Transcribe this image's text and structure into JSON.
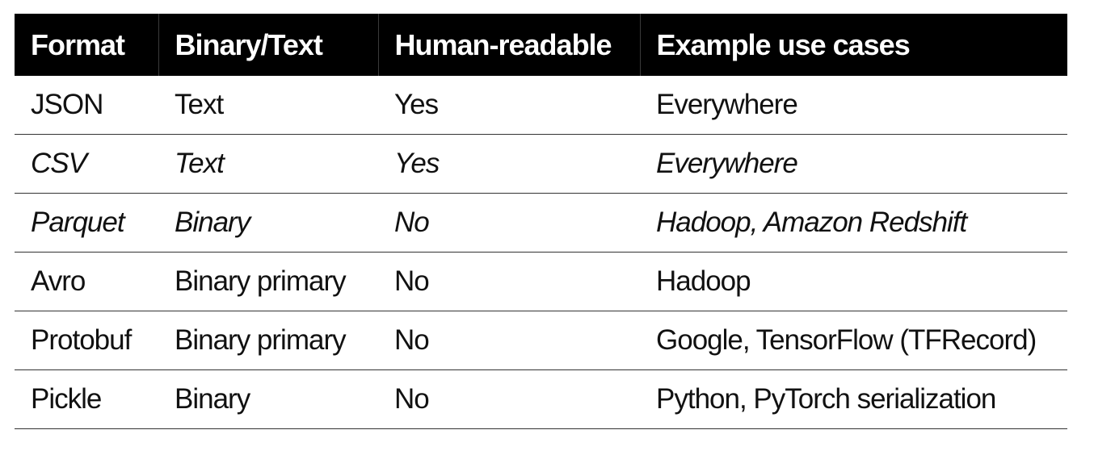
{
  "table": {
    "headers": [
      "Format",
      "Binary/Text",
      "Human-readable",
      "Example use cases"
    ],
    "rows": [
      {
        "format": "JSON",
        "type": "Text",
        "readable": "Yes",
        "use_cases": "Everywhere",
        "italic": false
      },
      {
        "format": "CSV",
        "type": "Text",
        "readable": "Yes",
        "use_cases": "Everywhere",
        "italic": true
      },
      {
        "format": "Parquet",
        "type": "Binary",
        "readable": "No",
        "use_cases": "Hadoop, Amazon Redshift",
        "italic": true
      },
      {
        "format": "Avro",
        "type": "Binary primary",
        "readable": "No",
        "use_cases": "Hadoop",
        "italic": false
      },
      {
        "format": "Protobuf",
        "type": "Binary primary",
        "readable": "No",
        "use_cases": "Google, TensorFlow (TFRecord)",
        "italic": false
      },
      {
        "format": "Pickle",
        "type": "Binary",
        "readable": "No",
        "use_cases": "Python, PyTorch serialization",
        "italic": false
      }
    ]
  }
}
